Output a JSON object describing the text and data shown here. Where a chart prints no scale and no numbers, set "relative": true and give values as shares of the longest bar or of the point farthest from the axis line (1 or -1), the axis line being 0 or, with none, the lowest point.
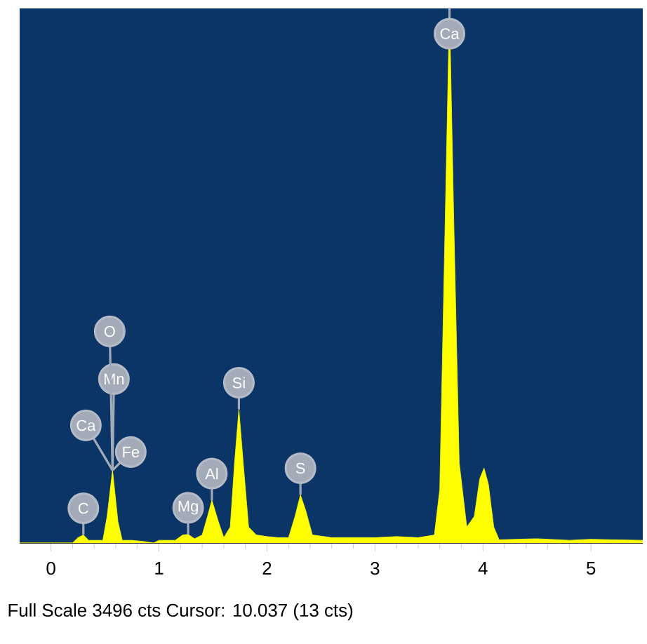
{
  "chart_data": {
    "type": "area",
    "relative": true,
    "color": "#ffff00",
    "x": [
      -0.29,
      0.2,
      0.25,
      0.3,
      0.35,
      0.48,
      0.52,
      0.57,
      0.62,
      0.66,
      0.75,
      0.85,
      0.95,
      1.0,
      1.15,
      1.22,
      1.27,
      1.33,
      1.4,
      1.45,
      1.49,
      1.55,
      1.6,
      1.66,
      1.7,
      1.74,
      1.78,
      1.83,
      1.9,
      2.0,
      2.1,
      2.2,
      2.26,
      2.31,
      2.36,
      2.42,
      2.6,
      2.8,
      3.0,
      3.2,
      3.4,
      3.55,
      3.6,
      3.64,
      3.69,
      3.73,
      3.78,
      3.85,
      3.92,
      3.97,
      4.01,
      4.05,
      4.1,
      4.15,
      4.5,
      4.8,
      5.0,
      5.2,
      5.48
    ],
    "values": [
      0,
      0,
      0.01,
      0.015,
      0.005,
      0.005,
      0.05,
      0.136,
      0.04,
      0.005,
      0.005,
      0.003,
      0,
      0.005,
      0.005,
      0.015,
      0.016,
      0.008,
      0.015,
      0.05,
      0.08,
      0.04,
      0.01,
      0.03,
      0.15,
      0.25,
      0.15,
      0.03,
      0.015,
      0.012,
      0.01,
      0.01,
      0.05,
      0.09,
      0.06,
      0.015,
      0.01,
      0.01,
      0.01,
      0.012,
      0.01,
      0.015,
      0.1,
      0.5,
      1.0,
      0.6,
      0.15,
      0.03,
      0.05,
      0.12,
      0.14,
      0.11,
      0.03,
      0.006,
      0.008,
      0.005,
      0.007,
      0.006,
      0.005
    ],
    "xlim": [
      -0.29,
      5.48
    ],
    "xticks": [
      0,
      1,
      2,
      3,
      4,
      5
    ],
    "annotations": [
      {
        "text": "C",
        "x": 0.3,
        "y": 0.015
      },
      {
        "text": "Ca",
        "x": 0.57,
        "y": 0.136
      },
      {
        "text": "Fe",
        "x": 0.57,
        "y": 0.136
      },
      {
        "text": "Mn",
        "x": 0.57,
        "y": 0.136
      },
      {
        "text": "O",
        "x": 0.57,
        "y": 0.136
      },
      {
        "text": "Mg",
        "x": 1.27,
        "y": 0.016
      },
      {
        "text": "Al",
        "x": 1.49,
        "y": 0.08
      },
      {
        "text": "Si",
        "x": 1.74,
        "y": 0.25
      },
      {
        "text": "S",
        "x": 2.31,
        "y": 0.09
      },
      {
        "text": "Ca",
        "x": 3.69,
        "y": 1.0
      },
      "Full Scale 3496 cts Cursor: 10.037  (13 cts)"
    ]
  }
}
